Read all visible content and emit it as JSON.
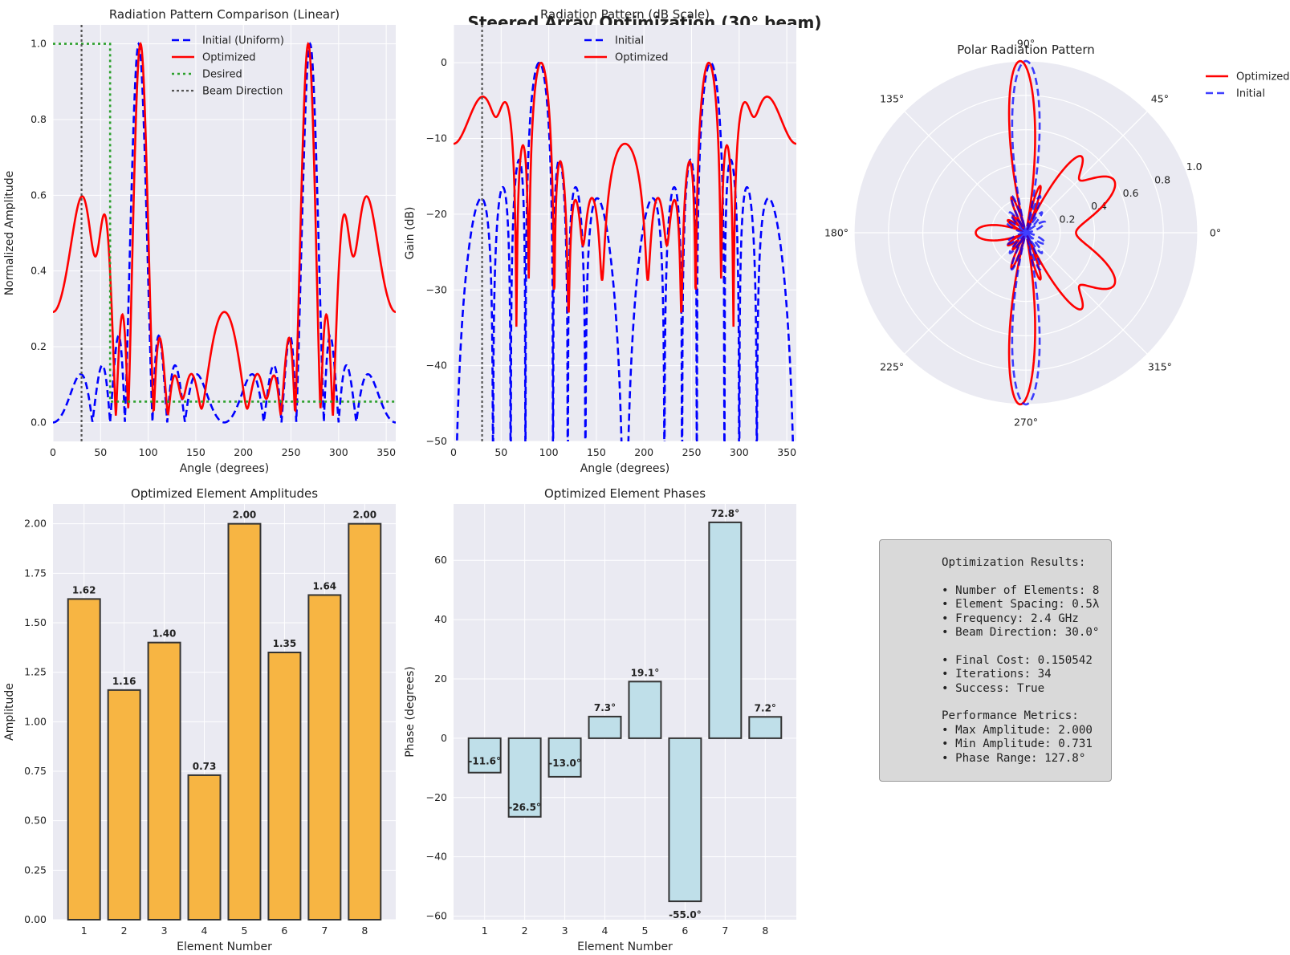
{
  "suptitle": "Steered Array Optimization (30° beam)",
  "colors": {
    "initial": "#0000ff",
    "optimized": "#ff0000",
    "desired": "#2ca02c",
    "beam": "#555555",
    "amp_bar": "#f7b543",
    "phase_bar": "#bfdfe9",
    "bar_edge": "#333333",
    "panel_bg": "#eaeaf2"
  },
  "chart_data": [
    {
      "type": "line",
      "title": "Radiation Pattern Comparison (Linear)",
      "xlabel": "Angle (degrees)",
      "ylabel": "Normalized Amplitude",
      "xlim": [
        0,
        360
      ],
      "ylim": [
        -0.05,
        1.05
      ],
      "xticks": [
        0,
        50,
        100,
        150,
        200,
        250,
        300,
        350
      ],
      "yticks": [
        0.0,
        0.2,
        0.4,
        0.6,
        0.8,
        1.0
      ],
      "xtick_labels": [
        "0",
        "50",
        "100",
        "150",
        "200",
        "250",
        "300",
        "350"
      ],
      "ytick_labels": [
        "0.0",
        "0.2",
        "0.4",
        "0.6",
        "0.8",
        "1.0"
      ],
      "grid": true,
      "legend_position": "top-center",
      "series": [
        {
          "name": "Initial (Uniform)",
          "style": "dashed",
          "color": "#0000ff"
        },
        {
          "name": "Optimized",
          "style": "solid",
          "color": "#ff0000"
        },
        {
          "name": "Desired",
          "style": "dotted",
          "color": "#2ca02c",
          "values": {
            "x": [
              0,
              60,
              60,
              360
            ],
            "y": [
              1.0,
              1.0,
              0.055,
              0.055
            ]
          }
        },
        {
          "name": "Beam Direction",
          "style": "dotted",
          "color": "#555555",
          "x_value": 30
        }
      ]
    },
    {
      "type": "line",
      "title": "Radiation Pattern (dB Scale)",
      "xlabel": "Angle (degrees)",
      "ylabel": "Gain (dB)",
      "xlim": [
        0,
        360
      ],
      "ylim": [
        -50,
        5
      ],
      "xticks": [
        0,
        50,
        100,
        150,
        200,
        250,
        300,
        350
      ],
      "yticks": [
        -50,
        -40,
        -30,
        -20,
        -10,
        0
      ],
      "xtick_labels": [
        "0",
        "50",
        "100",
        "150",
        "200",
        "250",
        "300",
        "350"
      ],
      "ytick_labels": [
        "−50",
        "−40",
        "−30",
        "−20",
        "−10",
        "0"
      ],
      "grid": true,
      "legend_position": "top-center",
      "series": [
        {
          "name": "Initial",
          "style": "dashed",
          "color": "#0000ff"
        },
        {
          "name": "Optimized",
          "style": "solid",
          "color": "#ff0000"
        }
      ],
      "beam_direction": 30
    },
    {
      "type": "polar",
      "title": "Polar Radiation Pattern",
      "rlim": [
        0,
        1.0
      ],
      "rticks": [
        0.2,
        0.4,
        0.6,
        0.8,
        1.0
      ],
      "rtick_labels": [
        "0.2",
        "0.4",
        "0.6",
        "0.8",
        "1.0"
      ],
      "angle_ticks": [
        0,
        45,
        90,
        135,
        180,
        225,
        270,
        315
      ],
      "angle_tick_labels": [
        "0°",
        "45°",
        "90°",
        "135°",
        "180°",
        "225°",
        "270°",
        "315°"
      ],
      "legend_position": "outside-top-right",
      "series": [
        {
          "name": "Optimized",
          "style": "solid",
          "color": "#ff0000"
        },
        {
          "name": "Initial",
          "style": "dashed",
          "color": "#0000ff"
        }
      ]
    },
    {
      "type": "bar",
      "title": "Optimized Element Amplitudes",
      "xlabel": "Element Number",
      "ylabel": "Amplitude",
      "categories": [
        "1",
        "2",
        "3",
        "4",
        "5",
        "6",
        "7",
        "8"
      ],
      "values": [
        1.62,
        1.16,
        1.4,
        0.73,
        2.0,
        1.35,
        1.64,
        2.0
      ],
      "labels": [
        "1.62",
        "1.16",
        "1.40",
        "0.73",
        "2.00",
        "1.35",
        "1.64",
        "2.00"
      ],
      "ylim": [
        0,
        2.1
      ],
      "yticks": [
        0.0,
        0.25,
        0.5,
        0.75,
        1.0,
        1.25,
        1.5,
        1.75,
        2.0
      ],
      "ytick_labels": [
        "0.00",
        "0.25",
        "0.50",
        "0.75",
        "1.00",
        "1.25",
        "1.50",
        "1.75",
        "2.00"
      ],
      "grid": true
    },
    {
      "type": "bar",
      "title": "Optimized Element Phases",
      "xlabel": "Element Number",
      "ylabel": "Phase (degrees)",
      "categories": [
        "1",
        "2",
        "3",
        "4",
        "5",
        "6",
        "7",
        "8"
      ],
      "values": [
        -11.6,
        -26.5,
        -13.0,
        7.3,
        19.1,
        -55.0,
        72.8,
        7.2
      ],
      "labels": [
        "-11.6°",
        "-26.5°",
        "-13.0°",
        "7.3°",
        "19.1°",
        "-55.0°",
        "72.8°",
        "7.2°"
      ],
      "ylim": [
        -61.2,
        79.0
      ],
      "yticks": [
        -60,
        -40,
        -20,
        0,
        20,
        40,
        60
      ],
      "ytick_labels": [
        "−60",
        "−40",
        "−20",
        "0",
        "20",
        "40",
        "60"
      ],
      "grid": true
    }
  ],
  "results": {
    "lines": [
      "Optimization Results:",
      "",
      "• Number of Elements: 8",
      "• Element Spacing: 0.5λ",
      "• Frequency: 2.4 GHz",
      "• Beam Direction: 30.0°",
      "",
      "• Final Cost: 0.150542",
      "• Iterations: 34",
      "• Success: True",
      "",
      "Performance Metrics:",
      "• Max Amplitude: 2.000",
      "• Min Amplitude: 0.731",
      "• Phase Range: 127.8°"
    ]
  }
}
